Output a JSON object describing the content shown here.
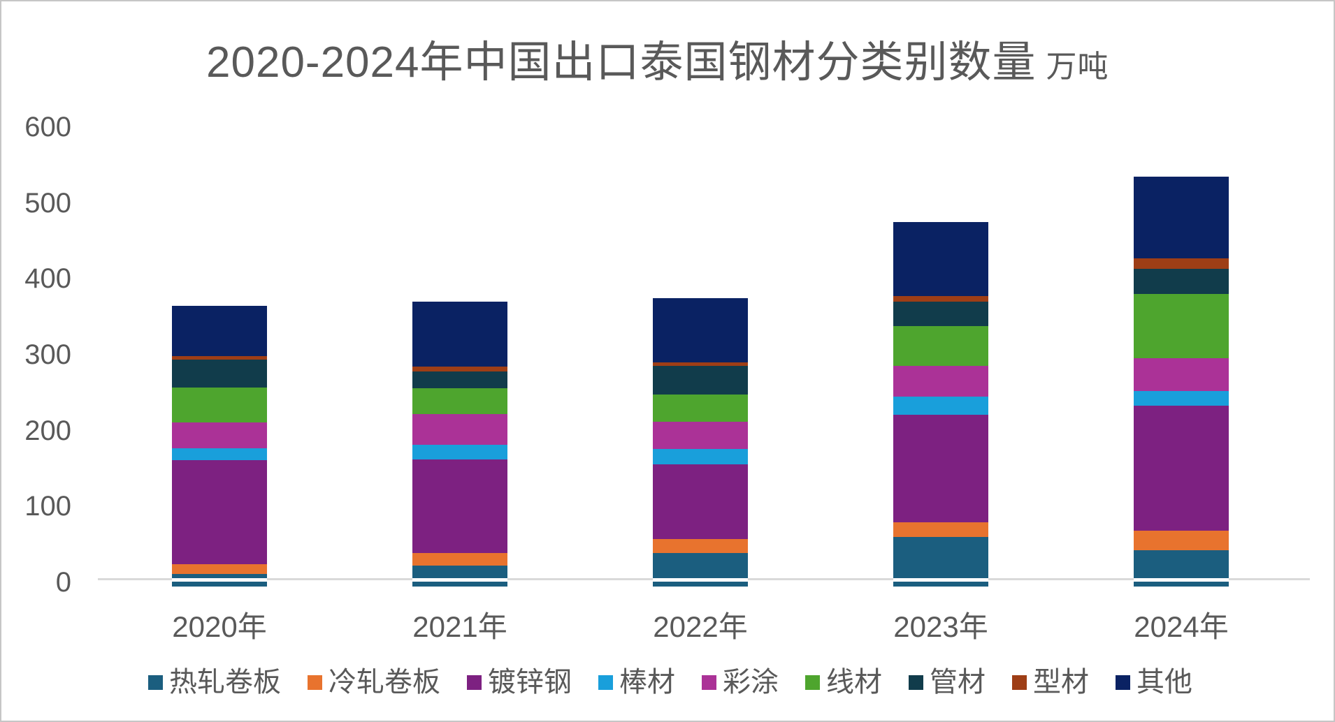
{
  "chart_data": {
    "type": "bar",
    "stacked": true,
    "title": "2020-2024年中国出口泰国钢材分类别数量",
    "unit": "万吨",
    "categories": [
      "2020年",
      "2021年",
      "2022年",
      "2023年",
      "2024年"
    ],
    "series": [
      {
        "name": "热轧卷板",
        "color": "#1B5E7F",
        "values": [
          16,
          27,
          44,
          65,
          47
        ]
      },
      {
        "name": "冷轧卷板",
        "color": "#E8732E",
        "values": [
          13,
          17,
          18,
          19,
          26
        ]
      },
      {
        "name": "镀锌钢",
        "color": "#7D2181",
        "values": [
          136,
          122,
          98,
          140,
          163
        ]
      },
      {
        "name": "棒材",
        "color": "#199FDB",
        "values": [
          16,
          19,
          20,
          24,
          19
        ]
      },
      {
        "name": "彩涂",
        "color": "#AB3297",
        "values": [
          33,
          40,
          35,
          40,
          43
        ]
      },
      {
        "name": "线材",
        "color": "#4EA52E",
        "values": [
          46,
          34,
          36,
          52,
          84
        ]
      },
      {
        "name": "管材",
        "color": "#113C4B",
        "values": [
          36,
          22,
          37,
          32,
          33
        ]
      },
      {
        "name": "型材",
        "color": "#9E3E16",
        "values": [
          5,
          6,
          5,
          7,
          14
        ]
      },
      {
        "name": "其他",
        "color": "#0A2263",
        "values": [
          66,
          85,
          84,
          97,
          106
        ]
      }
    ],
    "totals": [
      367,
      372,
      377,
      476,
      535
    ],
    "xlabel": "",
    "ylabel": "",
    "ylim": [
      0,
      600
    ],
    "y_ticks": [
      0,
      100,
      200,
      300,
      400,
      500,
      600
    ],
    "grid": false,
    "legend_position": "bottom",
    "axis_line_color": "#D9D9D9",
    "text_color": "#595959",
    "background": "#FFFFFF"
  }
}
